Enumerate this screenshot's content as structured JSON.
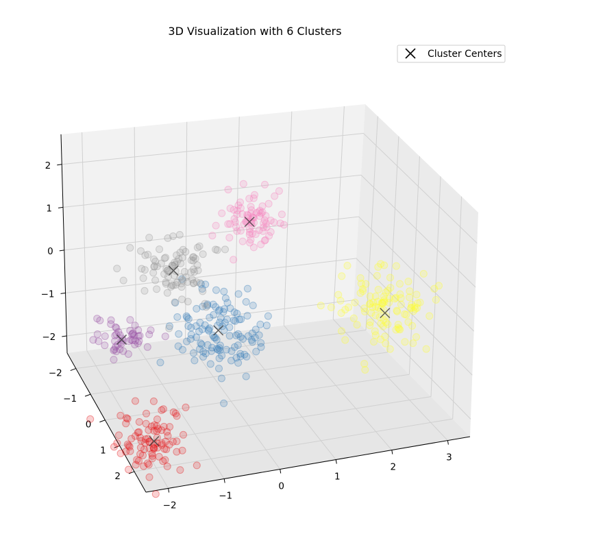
{
  "chart_data": {
    "type": "scatter",
    "projection": "3d",
    "title": "3D Visualization with 6 Clusters",
    "xlabel": "",
    "ylabel": "",
    "zlabel": "",
    "x_ticks": [
      "−2",
      "−1",
      "0",
      "1",
      "2",
      "3"
    ],
    "y_ticks": [
      "−2",
      "−1",
      "0",
      "1",
      "2"
    ],
    "z_ticks": [
      "−2",
      "−1",
      "0",
      "1",
      "2"
    ],
    "grid": true,
    "legend": {
      "position": "top-right",
      "entries": [
        {
          "label": "Cluster Centers",
          "marker": "x",
          "color": "#000000"
        }
      ]
    },
    "clusters": [
      {
        "color": "#377eb8",
        "center": [
          -0.3,
          0.2,
          -0.6
        ],
        "spread": 0.45,
        "count": 120
      },
      {
        "color": "#e41a1c",
        "center": [
          -2.1,
          2.3,
          -1.6
        ],
        "spread": 0.3,
        "count": 90
      },
      {
        "color": "#984ea3",
        "center": [
          -2.3,
          1.0,
          0.0
        ],
        "spread": 0.25,
        "count": 50
      },
      {
        "color": "#999999",
        "center": [
          -1.2,
          0.5,
          1.1
        ],
        "spread": 0.35,
        "count": 90
      },
      {
        "color": "#f781bf",
        "center": [
          0.5,
          -0.5,
          1.4
        ],
        "spread": 0.3,
        "count": 80
      },
      {
        "color": "#ffff33",
        "center": [
          2.3,
          1.5,
          0.0
        ],
        "spread": 0.4,
        "count": 110
      }
    ],
    "cluster_centers": [
      [
        -0.3,
        0.2,
        -0.6
      ],
      [
        -2.1,
        2.3,
        -1.6
      ],
      [
        -2.3,
        1.0,
        0.0
      ],
      [
        -1.2,
        0.5,
        1.1
      ],
      [
        0.5,
        -0.5,
        1.4
      ],
      [
        2.3,
        1.5,
        0.0
      ]
    ]
  }
}
